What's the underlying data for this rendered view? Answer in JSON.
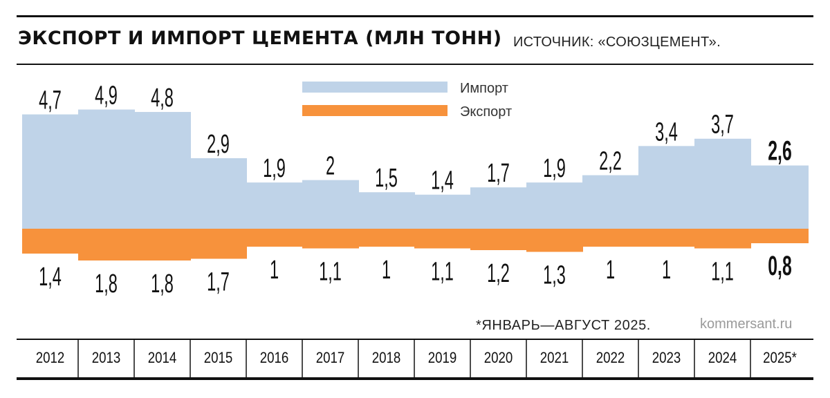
{
  "header": {
    "title": "ЭКСПОРТ И ИМПОРТ ЦЕМЕНТА (МЛН ТОНН)",
    "source": "ИСТОЧНИК: «СОЮЗЦЕМЕНТ»."
  },
  "footer": {
    "footnote": "*ЯНВАРЬ—АВГУСТ 2025.",
    "credit": "kommersant.ru"
  },
  "colors": {
    "import": "#bfd3e8",
    "export": "#f7923c",
    "text": "#111111"
  },
  "chart_data": {
    "type": "area",
    "title": "ЭКСПОРТ И ИМПОРТ ЦЕМЕНТА (МЛН ТОНН)",
    "categories": [
      "2012",
      "2013",
      "2014",
      "2015",
      "2016",
      "2017",
      "2018",
      "2019",
      "2020",
      "2021",
      "2022",
      "2023",
      "2024",
      "2025*"
    ],
    "series": [
      {
        "name": "Импорт",
        "color": "#bfd3e8",
        "values": [
          4.7,
          4.9,
          4.8,
          2.9,
          1.9,
          2,
          1.5,
          1.4,
          1.7,
          1.9,
          2.2,
          3.4,
          3.7,
          2.6
        ],
        "labels": [
          "4,7",
          "4,9",
          "4,8",
          "2,9",
          "1,9",
          "2",
          "1,5",
          "1,4",
          "1,7",
          "1,9",
          "2,2",
          "3,4",
          "3,7",
          "2,6"
        ]
      },
      {
        "name": "Экспорт",
        "color": "#f7923c",
        "values": [
          1.4,
          1.8,
          1.8,
          1.7,
          1,
          1.1,
          1,
          1.1,
          1.2,
          1.3,
          1,
          1,
          1.1,
          0.8
        ],
        "labels": [
          "1,4",
          "1,8",
          "1,8",
          "1,7",
          "1",
          "1,1",
          "1",
          "1,1",
          "1,2",
          "1,3",
          "1",
          "1",
          "1,1",
          "0,8"
        ]
      }
    ],
    "highlight_last": true,
    "legend": "top-center",
    "grid": false
  }
}
